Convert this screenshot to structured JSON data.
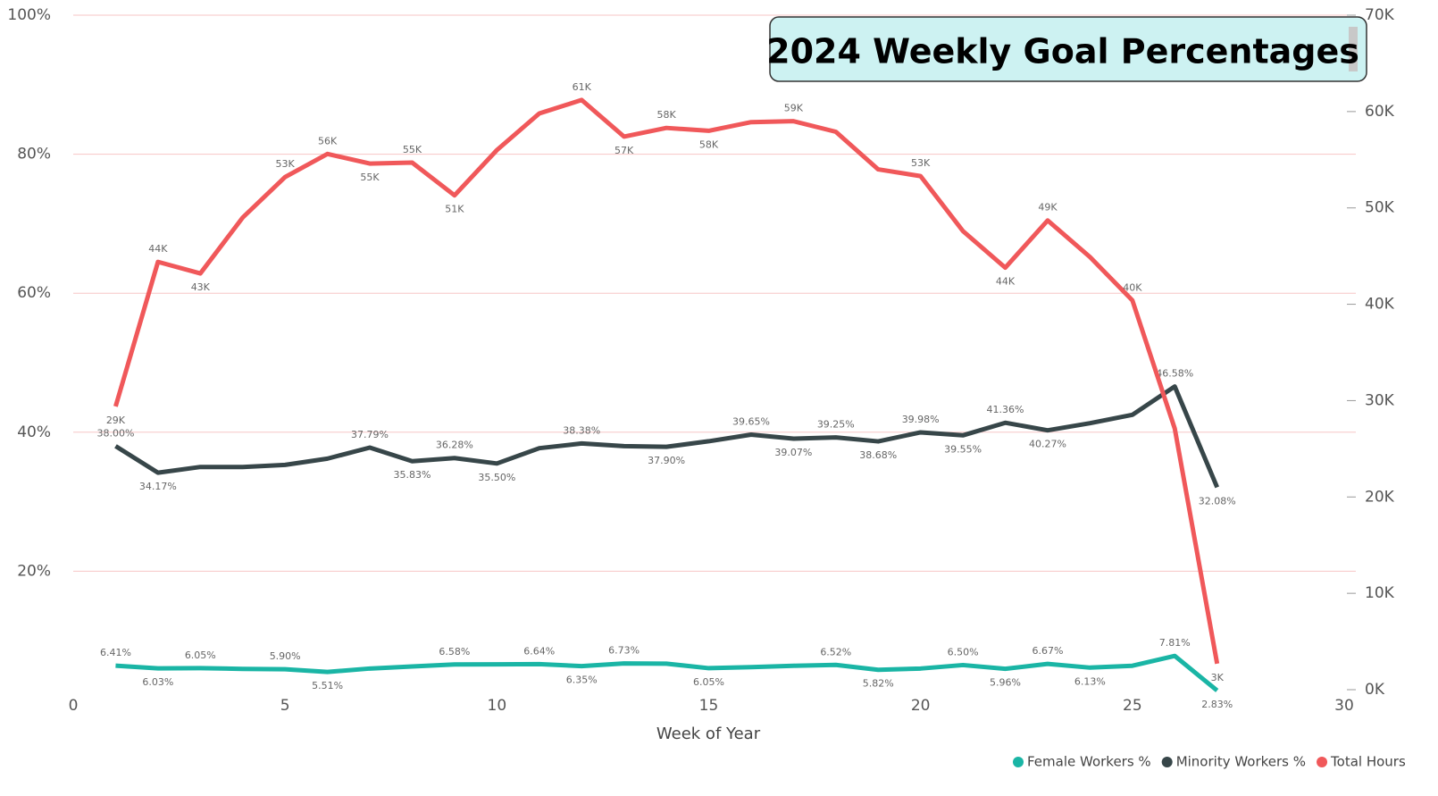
{
  "chart_data": {
    "type": "line",
    "title": "2024 Weekly Goal Percentages",
    "x_label": "Week of Year",
    "x": [
      1,
      2,
      3,
      4,
      5,
      6,
      7,
      8,
      9,
      10,
      11,
      12,
      13,
      14,
      15,
      16,
      17,
      18,
      19,
      20,
      21,
      22,
      23,
      24,
      25,
      26,
      27
    ],
    "xlim": [
      0,
      30
    ],
    "xticks": [
      0,
      5,
      10,
      15,
      20,
      25,
      30
    ],
    "ylim": [
      0,
      100
    ],
    "yticks": [
      {
        "value": 20,
        "label": "20%"
      },
      {
        "value": 40,
        "label": "40%"
      },
      {
        "value": 60,
        "label": "60%"
      },
      {
        "value": 80,
        "label": "80%"
      },
      {
        "value": 100,
        "label": "100%"
      }
    ],
    "y2lim": [
      0,
      70000
    ],
    "y2ticks": [
      {
        "value": 0,
        "label": "0K"
      },
      {
        "value": 10000,
        "label": "10K"
      },
      {
        "value": 20000,
        "label": "20K"
      },
      {
        "value": 30000,
        "label": "30K"
      },
      {
        "value": 40000,
        "label": "40K"
      },
      {
        "value": 50000,
        "label": "50K"
      },
      {
        "value": 60000,
        "label": "60K"
      },
      {
        "value": 70000,
        "label": "70K"
      }
    ],
    "grid": true,
    "legend": "bottom-right",
    "series": [
      {
        "name": "Female Workers %",
        "color": "#1ab5a5",
        "values": [
          6.41,
          6.03,
          6.05,
          5.95,
          5.9,
          5.51,
          6.0,
          6.3,
          6.58,
          6.6,
          6.64,
          6.35,
          6.73,
          6.7,
          6.05,
          6.2,
          6.4,
          6.52,
          5.82,
          6.0,
          6.5,
          5.96,
          6.67,
          6.13,
          6.4,
          7.81,
          2.83
        ],
        "value_labels": [
          "6.41%",
          "6.03%",
          "6.05%",
          null,
          "5.90%",
          "5.51%",
          null,
          null,
          "6.58%",
          null,
          "6.64%",
          "6.35%",
          "6.73%",
          null,
          "6.05%",
          null,
          null,
          "6.52%",
          "5.82%",
          null,
          "6.50%",
          "5.96%",
          "6.67%",
          "6.13%",
          null,
          "7.81%",
          "2.83%"
        ]
      },
      {
        "name": "Minority Workers %",
        "color": "#374649",
        "values": [
          38.0,
          34.17,
          35.0,
          35.0,
          35.3,
          36.2,
          37.79,
          35.83,
          36.28,
          35.5,
          37.7,
          38.38,
          38.0,
          37.9,
          38.7,
          39.65,
          39.07,
          39.25,
          38.68,
          39.98,
          39.55,
          41.36,
          40.27,
          41.3,
          42.5,
          46.58,
          32.08
        ],
        "value_labels": [
          "38.00%",
          "34.17%",
          null,
          null,
          null,
          null,
          "37.79%",
          "35.83%",
          "36.28%",
          "35.50%",
          null,
          "38.38%",
          null,
          "37.90%",
          null,
          "39.65%",
          "39.07%",
          "39.25%",
          "38.68%",
          "39.98%",
          "39.55%",
          "41.36%",
          "40.27%",
          null,
          null,
          "46.58%",
          "32.08%"
        ]
      },
      {
        "name": "Total Hours",
        "color": "#f0585a",
        "axis": "y2",
        "values": [
          29400,
          44400,
          43200,
          49000,
          53200,
          55600,
          54600,
          54700,
          51300,
          56000,
          59800,
          61200,
          57400,
          58300,
          58000,
          58900,
          59000,
          57900,
          54000,
          53300,
          47600,
          43800,
          48700,
          44900,
          40400,
          27100,
          2700
        ],
        "value_labels": [
          "29K",
          "44K",
          "43K",
          null,
          "53K",
          "56K",
          "55K",
          "55K",
          "51K",
          null,
          null,
          "61K",
          "57K",
          "58K",
          "58K",
          null,
          "59K",
          null,
          null,
          "53K",
          null,
          "44K",
          "49K",
          null,
          "40K",
          null,
          "3K"
        ]
      }
    ]
  }
}
